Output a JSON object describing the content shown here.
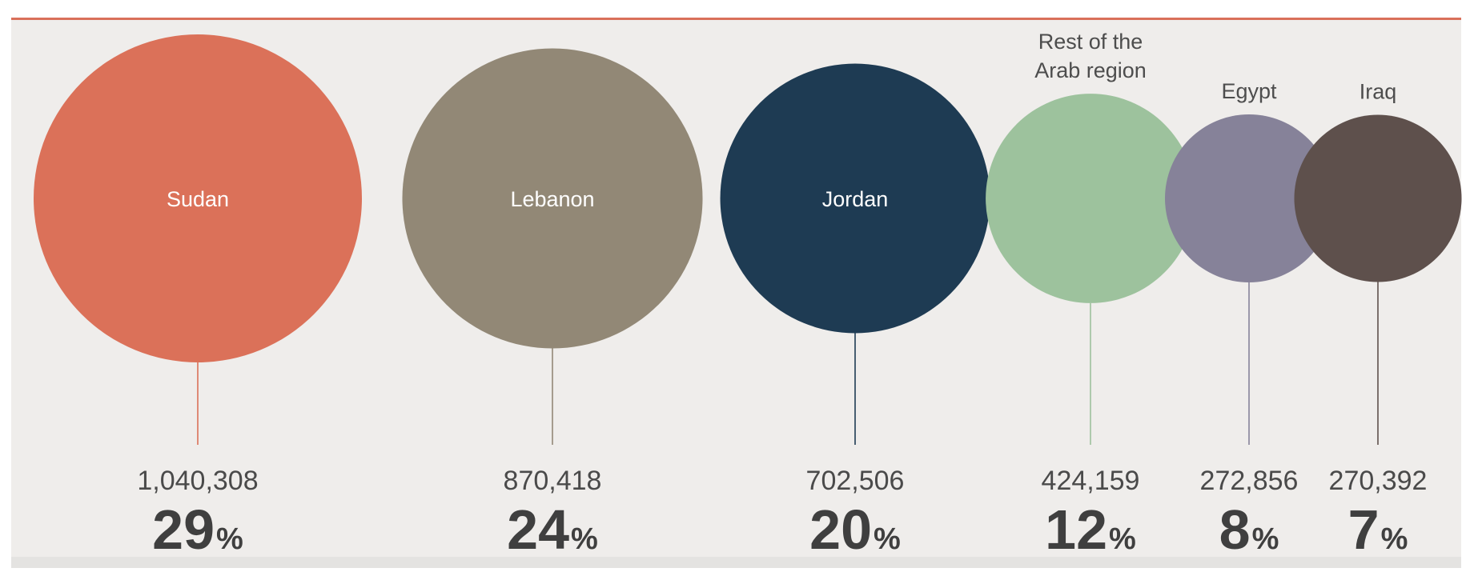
{
  "chart_data": {
    "type": "bubble",
    "items": [
      {
        "name": "Sudan",
        "value": "1,040,308",
        "value_num": 1040308,
        "percent": "29",
        "percent_sign": "%",
        "color": "#db7159",
        "label_position": "inside"
      },
      {
        "name": "Lebanon",
        "value": "870,418",
        "value_num": 870418,
        "percent": "24",
        "percent_sign": "%",
        "color": "#928876",
        "label_position": "inside"
      },
      {
        "name": "Jordan",
        "value": "702,506",
        "value_num": 702506,
        "percent": "20",
        "percent_sign": "%",
        "color": "#1e3b53",
        "label_position": "inside"
      },
      {
        "name": "Rest of the Arab region",
        "name_lines": [
          "Rest of the",
          "Arab region"
        ],
        "value": "424,159",
        "value_num": 424159,
        "percent": "12",
        "percent_sign": "%",
        "color": "#9dc29d",
        "label_position": "above"
      },
      {
        "name": "Egypt",
        "value": "272,856",
        "value_num": 272856,
        "percent": "8",
        "percent_sign": "%",
        "color": "#868299",
        "label_position": "above"
      },
      {
        "name": "Iraq",
        "value": "270,392",
        "value_num": 270392,
        "percent": "7",
        "percent_sign": "%",
        "color": "#5e504c",
        "label_position": "above"
      }
    ]
  }
}
